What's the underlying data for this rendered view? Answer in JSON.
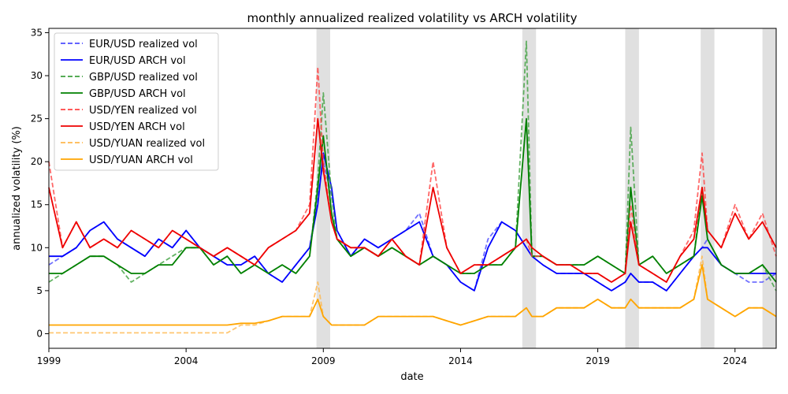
{
  "chart_data": {
    "type": "line",
    "title": "monthly annualized realized volatility vs ARCH volatility",
    "xlabel": "date",
    "ylabel": "annualized volatility (%)",
    "xlim": [
      1999.0,
      2025.5
    ],
    "ylim": [
      -1.7,
      35.5
    ],
    "xticks": [
      1999,
      2004,
      2009,
      2014,
      2019,
      2024
    ],
    "yticks": [
      0,
      5,
      10,
      15,
      20,
      25,
      30,
      35
    ],
    "grid": false,
    "legend_position": "top-left",
    "shaded_periods": [
      [
        2008.75,
        2009.25
      ],
      [
        2016.25,
        2016.75
      ],
      [
        2020.0,
        2020.5
      ],
      [
        2022.75,
        2023.25
      ],
      [
        2025.0,
        2025.5
      ]
    ],
    "x": [
      1999.0,
      1999.5,
      2000.0,
      2000.5,
      2001.0,
      2001.5,
      2002.0,
      2002.5,
      2003.0,
      2003.5,
      2004.0,
      2004.5,
      2005.0,
      2005.5,
      2006.0,
      2006.5,
      2007.0,
      2007.5,
      2008.0,
      2008.5,
      2008.8,
      2009.0,
      2009.3,
      2009.5,
      2010.0,
      2010.5,
      2011.0,
      2011.5,
      2012.0,
      2012.5,
      2013.0,
      2013.5,
      2014.0,
      2014.5,
      2015.0,
      2015.5,
      2016.0,
      2016.4,
      2016.6,
      2017.0,
      2017.5,
      2018.0,
      2018.5,
      2019.0,
      2019.5,
      2020.0,
      2020.2,
      2020.5,
      2021.0,
      2021.5,
      2022.0,
      2022.5,
      2022.8,
      2023.0,
      2023.5,
      2024.0,
      2024.5,
      2025.0,
      2025.5
    ],
    "series": [
      {
        "name": "EUR/USD realized vol",
        "style": "dashed",
        "color": "#4d4dff",
        "values": [
          8,
          9,
          10,
          12,
          13,
          11,
          10,
          9,
          11,
          10,
          12,
          10,
          9,
          8,
          8,
          9,
          7,
          6,
          8,
          10,
          16,
          20,
          16,
          12,
          9,
          11,
          10,
          11,
          12,
          14,
          9,
          8,
          6,
          5,
          11,
          13,
          12,
          10,
          9,
          8,
          7,
          7,
          7,
          6,
          5,
          6,
          7,
          6,
          6,
          5,
          7,
          9,
          10,
          11,
          8,
          7,
          6,
          6,
          7
        ]
      },
      {
        "name": "EUR/USD ARCH vol",
        "style": "solid",
        "color": "#0000ff",
        "values": [
          9,
          9,
          10,
          12,
          13,
          11,
          10,
          9,
          11,
          10,
          12,
          10,
          9,
          8,
          8,
          9,
          7,
          6,
          8,
          10,
          15,
          21,
          17,
          12,
          9,
          11,
          10,
          11,
          12,
          13,
          9,
          8,
          6,
          5,
          10,
          13,
          12,
          10,
          9,
          8,
          7,
          7,
          7,
          6,
          5,
          6,
          7,
          6,
          6,
          5,
          7,
          9,
          10,
          10,
          8,
          7,
          7,
          7,
          7
        ]
      },
      {
        "name": "GBP/USD realized vol",
        "style": "dashed",
        "color": "#3fa03f",
        "values": [
          6,
          7,
          8,
          9,
          9,
          8,
          6,
          7,
          8,
          9,
          10,
          10,
          8,
          9,
          7,
          8,
          7,
          8,
          7,
          9,
          18,
          28,
          16,
          11,
          9,
          10,
          9,
          10,
          9,
          8,
          9,
          8,
          7,
          7,
          8,
          8,
          10,
          34,
          9,
          9,
          8,
          8,
          8,
          9,
          8,
          7,
          24,
          8,
          9,
          7,
          8,
          9,
          17,
          11,
          8,
          7,
          7,
          8,
          5
        ]
      },
      {
        "name": "GBP/USD ARCH vol",
        "style": "solid",
        "color": "#008000",
        "values": [
          7,
          7,
          8,
          9,
          9,
          8,
          7,
          7,
          8,
          8,
          10,
          10,
          8,
          9,
          7,
          8,
          7,
          8,
          7,
          9,
          17,
          23,
          14,
          11,
          9,
          10,
          9,
          10,
          9,
          8,
          9,
          8,
          7,
          7,
          8,
          8,
          10,
          25,
          9,
          9,
          8,
          8,
          8,
          9,
          8,
          7,
          17,
          8,
          9,
          7,
          8,
          9,
          16,
          11,
          8,
          7,
          7,
          8,
          6
        ]
      },
      {
        "name": "USD/YEN realized vol",
        "style": "dashed",
        "color": "#ff4444",
        "values": [
          20,
          10,
          13,
          10,
          11,
          10,
          12,
          11,
          10,
          12,
          11,
          10,
          9,
          10,
          9,
          8,
          10,
          11,
          12,
          15,
          31,
          20,
          13,
          11,
          10,
          10,
          9,
          11,
          9,
          8,
          20,
          10,
          7,
          8,
          8,
          9,
          10,
          11,
          9,
          9,
          8,
          8,
          7,
          7,
          6,
          7,
          15,
          8,
          7,
          6,
          9,
          12,
          21,
          12,
          10,
          15,
          11,
          14,
          9
        ]
      },
      {
        "name": "USD/YEN ARCH vol",
        "style": "solid",
        "color": "#ee0000",
        "values": [
          17,
          10,
          13,
          10,
          11,
          10,
          12,
          11,
          10,
          12,
          11,
          10,
          9,
          10,
          9,
          8,
          10,
          11,
          12,
          14,
          25,
          19,
          13,
          11,
          10,
          10,
          9,
          11,
          9,
          8,
          17,
          10,
          7,
          8,
          8,
          9,
          10,
          11,
          10,
          9,
          8,
          8,
          7,
          7,
          6,
          7,
          13,
          8,
          7,
          6,
          9,
          11,
          17,
          12,
          10,
          14,
          11,
          13,
          10
        ]
      },
      {
        "name": "USD/YUAN realized vol",
        "style": "dashed",
        "color": "#ffb84d",
        "values": [
          0.1,
          0.1,
          0.1,
          0.1,
          0.1,
          0.1,
          0.1,
          0.1,
          0.1,
          0.1,
          0.1,
          0.1,
          0.1,
          0.1,
          1,
          1,
          1.5,
          2,
          2,
          2,
          6,
          2,
          1,
          1,
          1,
          1,
          2,
          2,
          2,
          2,
          2,
          1.5,
          1,
          1.5,
          2,
          2,
          2,
          3,
          2,
          2,
          3,
          3,
          3,
          4,
          3,
          3,
          4,
          3,
          3,
          3,
          3,
          4,
          9,
          4,
          3,
          2,
          3,
          3,
          2
        ]
      },
      {
        "name": "USD/YUAN ARCH vol",
        "style": "solid",
        "color": "#ffa500",
        "values": [
          1,
          1,
          1,
          1,
          1,
          1,
          1,
          1,
          1,
          1,
          1,
          1,
          1,
          1,
          1.2,
          1.2,
          1.5,
          2,
          2,
          2,
          4,
          2,
          1,
          1,
          1,
          1,
          2,
          2,
          2,
          2,
          2,
          1.5,
          1,
          1.5,
          2,
          2,
          2,
          3,
          2,
          2,
          3,
          3,
          3,
          4,
          3,
          3,
          4,
          3,
          3,
          3,
          3,
          4,
          8,
          4,
          3,
          2,
          3,
          3,
          2
        ]
      }
    ]
  }
}
